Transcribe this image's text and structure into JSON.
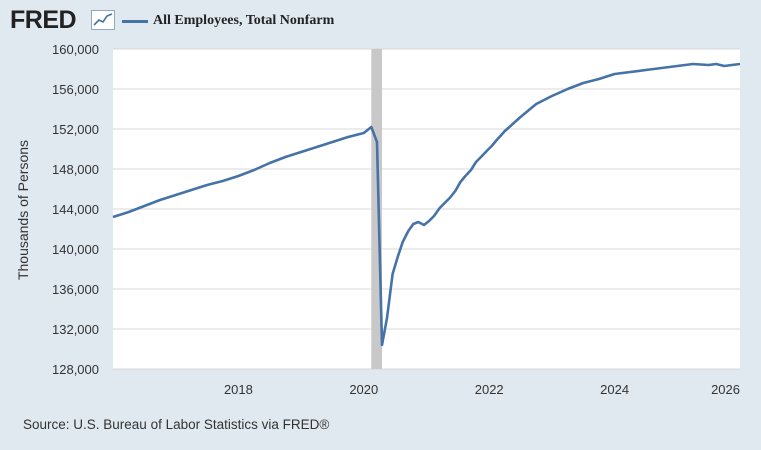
{
  "header": {
    "logo_text": "FRED",
    "logo_icon": "line-graph-icon",
    "series_title": "All Employees, Total Nonfarm"
  },
  "source": "Source: U.S. Bureau of Labor Statistics via FRED®",
  "colors": {
    "background": "#e1e9f0",
    "plot": "#ffffff",
    "line": "#4572a7",
    "grid": "#d8d8d8",
    "recession": "#c8c8c8"
  },
  "chart_data": {
    "type": "line",
    "title": "All Employees, Total Nonfarm",
    "xlabel": "",
    "ylabel": "Thousands of Persons",
    "xlim": [
      2016,
      2026
    ],
    "ylim": [
      128000,
      160000
    ],
    "x_ticks": [
      "2018",
      "2020",
      "2022",
      "2024",
      "2026"
    ],
    "y_ticks": [
      "128,000",
      "132,000",
      "136,000",
      "140,000",
      "144,000",
      "148,000",
      "152,000",
      "156,000",
      "160,000"
    ],
    "y_tick_values": [
      128000,
      132000,
      136000,
      140000,
      144000,
      148000,
      152000,
      156000,
      160000
    ],
    "x_tick_values": [
      2018,
      2020,
      2022,
      2024,
      2026
    ],
    "grid": true,
    "recession_band": [
      2020.12,
      2020.29
    ],
    "series": [
      {
        "name": "All Employees, Total Nonfarm",
        "x": [
          2016.0,
          2016.25,
          2016.5,
          2016.75,
          2017.0,
          2017.25,
          2017.5,
          2017.75,
          2018.0,
          2018.25,
          2018.5,
          2018.75,
          2019.0,
          2019.25,
          2019.5,
          2019.75,
          2020.0,
          2020.12,
          2020.21,
          2020.29,
          2020.37,
          2020.46,
          2020.54,
          2020.62,
          2020.71,
          2020.79,
          2020.87,
          2020.96,
          2021.04,
          2021.12,
          2021.21,
          2021.29,
          2021.37,
          2021.46,
          2021.54,
          2021.62,
          2021.71,
          2021.79,
          2021.87,
          2021.96,
          2022.04,
          2022.12,
          2022.25,
          2022.5,
          2022.75,
          2023.0,
          2023.25,
          2023.5,
          2023.75,
          2024.0,
          2024.25,
          2024.5,
          2024.75,
          2025.0,
          2025.25,
          2025.5,
          2025.62,
          2025.75,
          2025.87,
          2026.0
        ],
        "values": [
          143200,
          143700,
          144300,
          144900,
          145400,
          145900,
          146400,
          146800,
          147300,
          147900,
          148600,
          149200,
          149700,
          150200,
          150700,
          151200,
          151600,
          152200,
          150700,
          130400,
          133100,
          137500,
          139200,
          140700,
          141800,
          142500,
          142700,
          142400,
          142800,
          143300,
          144100,
          144600,
          145100,
          145800,
          146700,
          147300,
          147900,
          148700,
          149200,
          149800,
          150300,
          150900,
          151800,
          153200,
          154500,
          155300,
          156000,
          156600,
          157000,
          157500,
          157700,
          157900,
          158100,
          158300,
          158500,
          158400,
          158500,
          158300,
          158400,
          158500
        ]
      }
    ]
  }
}
